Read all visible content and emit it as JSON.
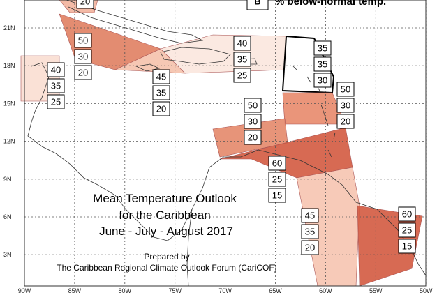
{
  "title": [
    "Mean Temperature Outlook",
    "for the Caribbean",
    "June - July - August 2017"
  ],
  "credit": [
    "Prepared by",
    "The Caribbean Regional Climate Outlook Forum (CariCOF)"
  ],
  "legend": {
    "letter": "B",
    "text": "% below-normal temp."
  },
  "lat_labels": [
    "21N",
    "18N",
    "15N",
    "12N",
    "9N",
    "6N",
    "3N"
  ],
  "lon_labels": [
    "90W",
    "85W",
    "80W",
    "75W",
    "70W",
    "65W",
    "60W",
    "55W",
    "50W"
  ],
  "regions": [
    {
      "probabilities": [
        "20"
      ],
      "color": "#f2b39c"
    },
    {
      "probabilities": [
        "50",
        "30",
        "20"
      ],
      "color": "#e07f62"
    },
    {
      "probabilities": [
        "40",
        "35",
        "25"
      ],
      "color": "#f9ded2"
    },
    {
      "probabilities": [
        "45",
        "35",
        "20"
      ],
      "color": "#f5c2ac"
    },
    {
      "probabilities": [
        "40",
        "35",
        "25"
      ],
      "color": "#fbe7de"
    },
    {
      "probabilities": [
        "35",
        "35",
        "30"
      ],
      "color": "#ffffff"
    },
    {
      "probabilities": [
        "50",
        "30",
        "20"
      ],
      "color": "#e8896b"
    },
    {
      "probabilities": [
        "50",
        "30",
        "20"
      ],
      "color": "#e4886a"
    },
    {
      "probabilities": [
        "60",
        "25",
        "15"
      ],
      "color": "#d35a40"
    },
    {
      "probabilities": [
        "45",
        "35",
        "20"
      ],
      "color": "#f6c4b0"
    },
    {
      "probabilities": [
        "60",
        "25",
        "15"
      ],
      "color": "#d35a40"
    }
  ]
}
